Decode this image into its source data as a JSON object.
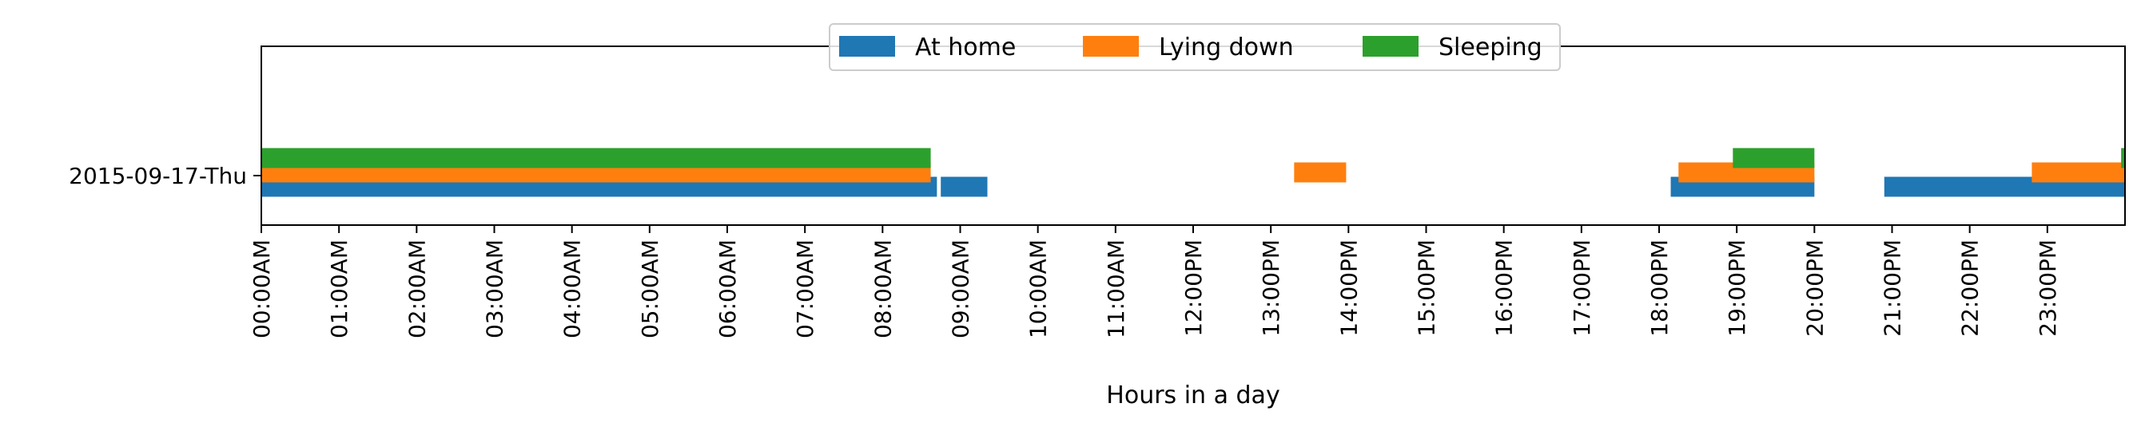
{
  "chart_data": {
    "type": "timeline",
    "xlabel": "Hours in a day",
    "xlim": [
      0,
      24
    ],
    "x_ticks": [
      "00:00AM",
      "01:00AM",
      "02:00AM",
      "03:00AM",
      "04:00AM",
      "05:00AM",
      "06:00AM",
      "07:00AM",
      "08:00AM",
      "09:00AM",
      "10:00AM",
      "11:00AM",
      "12:00PM",
      "13:00PM",
      "14:00PM",
      "15:00PM",
      "16:00PM",
      "17:00PM",
      "18:00PM",
      "19:00PM",
      "20:00PM",
      "21:00PM",
      "22:00PM",
      "23:00PM"
    ],
    "categories": [
      "2015-09-17-Thu"
    ],
    "legend_position": "top-center",
    "grid": false,
    "series": [
      {
        "name": "At home",
        "color": "#1f77b4",
        "intervals": [
          [
            0.0,
            8.7
          ],
          [
            8.75,
            9.35
          ],
          [
            18.15,
            20.0
          ],
          [
            20.9,
            24.0
          ]
        ]
      },
      {
        "name": "Lying down",
        "color": "#ff7f0e",
        "intervals": [
          [
            0.0,
            8.62
          ],
          [
            13.3,
            13.97
          ],
          [
            18.25,
            20.0
          ],
          [
            22.8,
            24.0
          ]
        ]
      },
      {
        "name": "Sleeping",
        "color": "#2ca02c",
        "intervals": [
          [
            0.0,
            8.62
          ],
          [
            18.95,
            20.0
          ],
          [
            23.95,
            24.0
          ]
        ]
      }
    ]
  }
}
